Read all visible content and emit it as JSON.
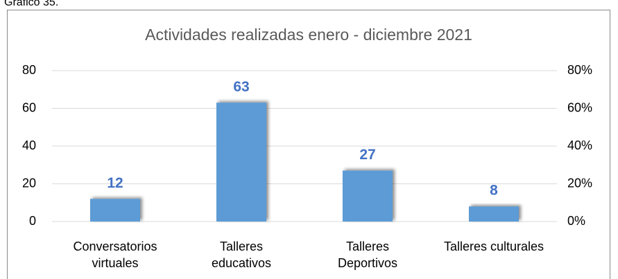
{
  "caption": "Gráfico 35.",
  "chart_data": {
    "type": "bar",
    "title": "Actividades realizadas enero - diciembre 2021",
    "categories": [
      "Conversatorios\nvirtuales",
      "Talleres\neducativos",
      "Talleres\nDeportivos",
      "Talleres culturales"
    ],
    "values": [
      12,
      63,
      27,
      8
    ],
    "color": "#5b9bd5",
    "value_label_color": "#4472c4",
    "ylim": [
      0,
      80
    ],
    "yticks": [
      0,
      20,
      40,
      60,
      80
    ],
    "y2lim": [
      0,
      80
    ],
    "y2ticks": [
      {
        "value": 0,
        "label": "0%"
      },
      {
        "value": 20,
        "label": "20%"
      },
      {
        "value": 40,
        "label": "40%"
      },
      {
        "value": 60,
        "label": "60%"
      },
      {
        "value": 80,
        "label": "80%"
      }
    ],
    "grid": true
  }
}
